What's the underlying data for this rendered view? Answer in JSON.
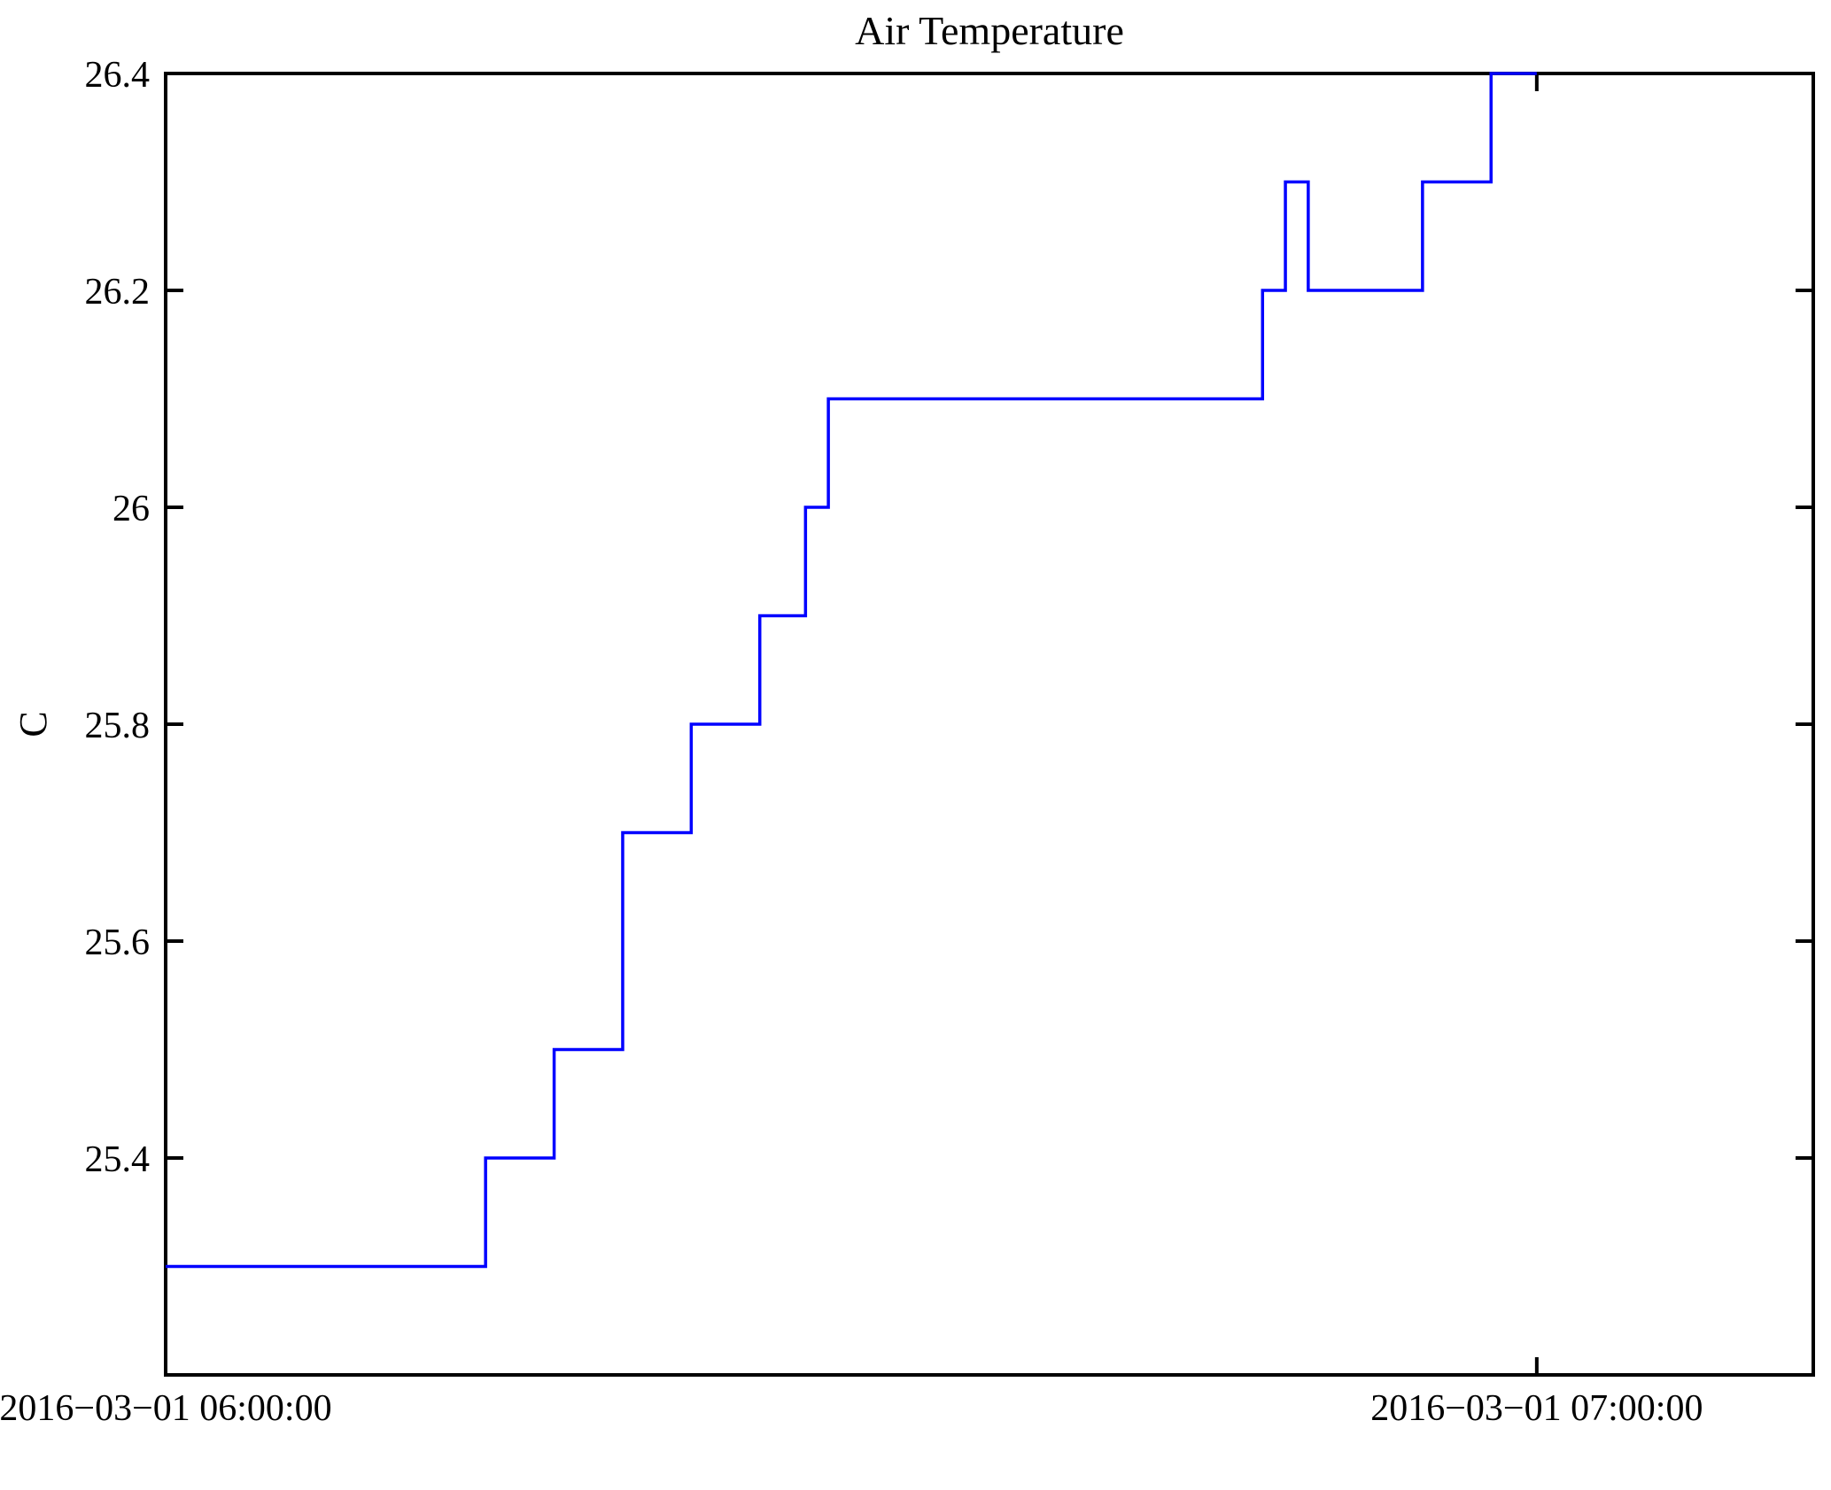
{
  "chart_data": {
    "type": "line",
    "step": "post",
    "title": "Air Temperature",
    "ylabel": "C",
    "xlabel": "",
    "grid": false,
    "legend": null,
    "background": "#ffffff",
    "axis_color": "#000000",
    "xlim_minutes_after_start": [
      0,
      72.1
    ],
    "ylim": [
      25.2,
      26.4
    ],
    "series": [
      {
        "name": "air temperature",
        "color": "#0000ff",
        "times": [
          "06:00:00",
          "06:14:00",
          "06:17:00",
          "06:20:00",
          "06:23:00",
          "06:26:00",
          "06:28:00",
          "06:29:00",
          "06:48:00",
          "06:49:00",
          "06:50:00",
          "06:55:00",
          "06:58:00",
          "07:00:00"
        ],
        "x_minutes": [
          0,
          14,
          17,
          20,
          23,
          26,
          28,
          29,
          48,
          49,
          50,
          55,
          58,
          60
        ],
        "values_c": [
          25.3,
          25.4,
          25.5,
          25.7,
          25.8,
          25.9,
          26.0,
          26.1,
          26.2,
          26.3,
          26.2,
          26.3,
          26.4,
          26.4
        ]
      }
    ],
    "xticks": [
      {
        "minutes": 0,
        "label": "2016−03−01 06:00:00"
      },
      {
        "minutes": 60,
        "label": "2016−03−01 07:00:00"
      }
    ],
    "yticks": [
      {
        "value": 25.4,
        "label": "25.4"
      },
      {
        "value": 25.6,
        "label": "25.6"
      },
      {
        "value": 25.8,
        "label": "25.8"
      },
      {
        "value": 26.0,
        "label": "26"
      },
      {
        "value": 26.2,
        "label": "26.2"
      },
      {
        "value": 26.4,
        "label": "26.4"
      }
    ]
  }
}
